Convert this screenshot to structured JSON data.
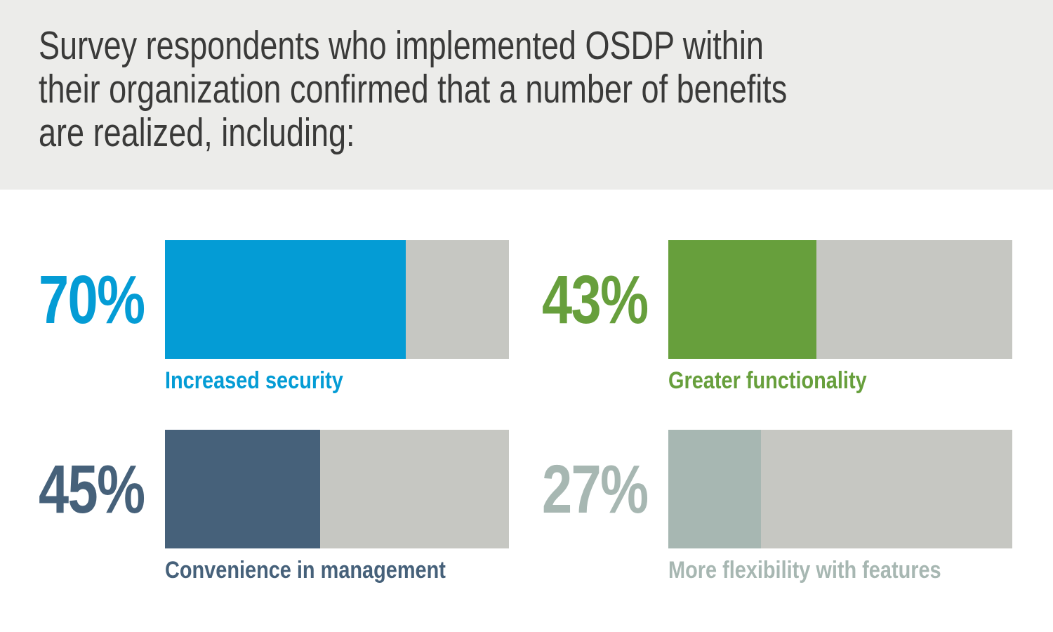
{
  "header": {
    "lines": [
      "Survey respondents who implemented OSDP within",
      "their organization confirmed that a number of benefits",
      "are realized, including:"
    ],
    "background_color": "#ececea",
    "text_color": "#3a3a39"
  },
  "chart_data": {
    "type": "bar",
    "orientation": "horizontal",
    "unit": "percent",
    "max": 100,
    "track_color": "#c6c7c2",
    "grid": false,
    "legend": false,
    "items": [
      {
        "label": "Increased security",
        "value": 70,
        "display": "70%",
        "color": "#049cd5"
      },
      {
        "label": "Greater functionality",
        "value": 43,
        "display": "43%",
        "color": "#679f3c"
      },
      {
        "label": "Convenience in management",
        "value": 45,
        "display": "45%",
        "color": "#46617a"
      },
      {
        "label": "More flexibility with features",
        "value": 27,
        "display": "27%",
        "color": "#a7b7b2"
      }
    ]
  }
}
